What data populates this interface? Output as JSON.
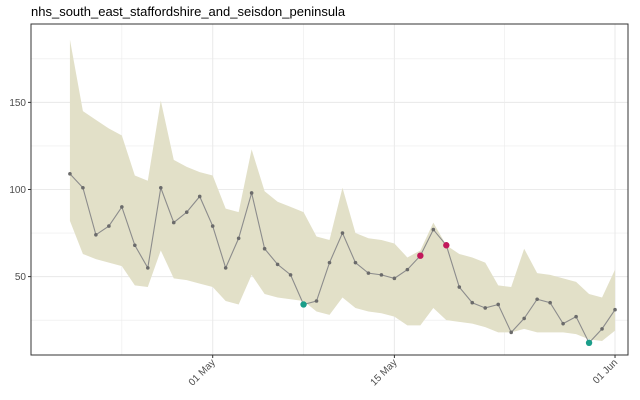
{
  "chart_data": {
    "type": "line",
    "title": "nhs_south_east_staffordshire_and_seisdon_peninsula",
    "xlabel": "",
    "ylabel": "",
    "x_start": "2020-04-20",
    "x_ticks": [
      {
        "date": "2020-05-01",
        "label": "01 May"
      },
      {
        "date": "2020-05-15",
        "label": "15 May"
      },
      {
        "date": "2020-06-01",
        "label": "01 Jun"
      }
    ],
    "y_ticks": [
      50,
      100,
      150
    ],
    "ylim": [
      5,
      195
    ],
    "xlim": [
      "2020-04-17",
      "2020-06-02"
    ],
    "grid": true,
    "colors": {
      "band": "#e2e0c8",
      "line": "#8c8c8c",
      "point": "#6b6b6b",
      "high_outlier": "#c2185b",
      "low_outlier": "#1b9e8a",
      "grid": "#ebebeb",
      "border": "#333333"
    },
    "series": [
      {
        "values": [
          109,
          101,
          74,
          79,
          90,
          68,
          55,
          101,
          81,
          87,
          96,
          79,
          55,
          72,
          98,
          66,
          57,
          51,
          34,
          36,
          58,
          75,
          58,
          52,
          51,
          49,
          54,
          62,
          77,
          68,
          44,
          35,
          32,
          34,
          18,
          26,
          37,
          35,
          23,
          27,
          12,
          20,
          31
        ],
        "lower": [
          82,
          63,
          60,
          58,
          56,
          45,
          44,
          65,
          49,
          48,
          46,
          44,
          36,
          34,
          51,
          40,
          38,
          37,
          36,
          30,
          28,
          38,
          32,
          30,
          29,
          27,
          22,
          22,
          32,
          25,
          24,
          23,
          21,
          18,
          18,
          20,
          18,
          18,
          18,
          17,
          14,
          13,
          19
        ],
        "upper": [
          186,
          145,
          140,
          135,
          131,
          108,
          105,
          151,
          117,
          113,
          110,
          108,
          89,
          87,
          123,
          99,
          93,
          90,
          87,
          73,
          71,
          101,
          75,
          72,
          71,
          69,
          61,
          65,
          81,
          68,
          63,
          61,
          58,
          45,
          44,
          66,
          52,
          51,
          49,
          47,
          40,
          38,
          54
        ],
        "highlight": [
          0,
          0,
          0,
          0,
          0,
          0,
          0,
          0,
          0,
          0,
          0,
          0,
          0,
          0,
          0,
          0,
          0,
          0,
          -1,
          0,
          0,
          0,
          0,
          0,
          0,
          0,
          0,
          1,
          0,
          1,
          0,
          0,
          0,
          0,
          0,
          0,
          0,
          0,
          0,
          0,
          -1,
          0,
          0
        ]
      }
    ]
  }
}
